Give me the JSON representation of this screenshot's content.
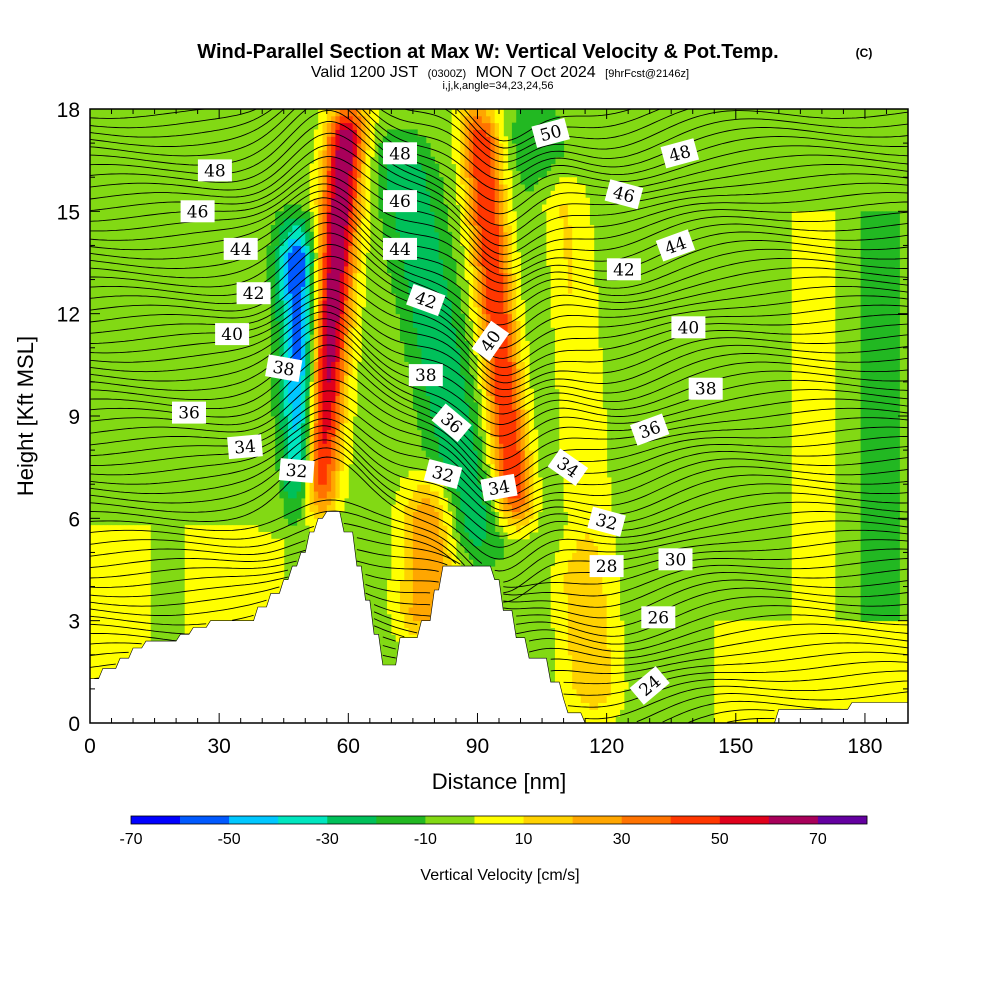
{
  "header": {
    "title": "Wind-Parallel Section at Max W: Vertical Velocity & Pot.Temp.",
    "copyright": "(C)",
    "valid_prefix": "Valid 1200 JST",
    "valid_utc": "(0300Z)",
    "valid_date": "MON 7 Oct 2024",
    "forecast": "[9hrFcst@2146z]",
    "indices": "i,j,k,angle=34,23,24,56"
  },
  "colors": {
    "velocity_palette": [
      "#0000ff",
      "#0059ff",
      "#00c7ff",
      "#00e6bf",
      "#00c05a",
      "#22b822",
      "#82d914",
      "#ffff00",
      "#ffd200",
      "#ffa600",
      "#ff7300",
      "#ff3700",
      "#e0001c",
      "#a8005a",
      "#6400a0"
    ],
    "terrain": "#ffffff",
    "contours": "#000000"
  },
  "chart_data": {
    "type": "heatmap",
    "title": "Wind-Parallel Section at Max W: Vertical Velocity & Pot.Temp.",
    "xlabel": "Distance [nm]",
    "ylabel": "Height [Kft MSL]",
    "xlim": [
      0,
      190
    ],
    "ylim": [
      0,
      18
    ],
    "x_ticks": [
      0,
      30,
      60,
      90,
      120,
      150,
      180
    ],
    "y_ticks": [
      0,
      3,
      6,
      9,
      12,
      15,
      18
    ],
    "colorbar": {
      "label": "Vertical Velocity [cm/s]",
      "bounds": [
        -70,
        80
      ],
      "step": 10,
      "tick_values": [
        -70,
        -50,
        -30,
        -10,
        10,
        30,
        50,
        70
      ]
    },
    "terrain_profile": [
      [
        0,
        1.3
      ],
      [
        2,
        1.3
      ],
      [
        3,
        1.6
      ],
      [
        6,
        1.6
      ],
      [
        7,
        1.9
      ],
      [
        9,
        1.9
      ],
      [
        10,
        2.2
      ],
      [
        12,
        2.2
      ],
      [
        13,
        2.4
      ],
      [
        20,
        2.4
      ],
      [
        21,
        2.6
      ],
      [
        23,
        2.6
      ],
      [
        24,
        2.8
      ],
      [
        27,
        2.8
      ],
      [
        28,
        3.0
      ],
      [
        38,
        3.0
      ],
      [
        39,
        3.4
      ],
      [
        41,
        3.4
      ],
      [
        42,
        3.8
      ],
      [
        44,
        3.8
      ],
      [
        45,
        4.2
      ],
      [
        46,
        4.2
      ],
      [
        47,
        4.6
      ],
      [
        48,
        4.6
      ],
      [
        49,
        5.0
      ],
      [
        50,
        5.0
      ],
      [
        51,
        5.6
      ],
      [
        52,
        5.6
      ],
      [
        53,
        6.0
      ],
      [
        54,
        6.0
      ],
      [
        55,
        6.2
      ],
      [
        58,
        6.2
      ],
      [
        59,
        5.6
      ],
      [
        61,
        5.6
      ],
      [
        62,
        4.6
      ],
      [
        63,
        4.6
      ],
      [
        64,
        3.6
      ],
      [
        65,
        3.6
      ],
      [
        66,
        2.6
      ],
      [
        67,
        2.6
      ],
      [
        68,
        1.7
      ],
      [
        71,
        1.7
      ],
      [
        72,
        2.5
      ],
      [
        76,
        2.5
      ],
      [
        77,
        3.0
      ],
      [
        79,
        3.0
      ],
      [
        80,
        3.9
      ],
      [
        81,
        3.9
      ],
      [
        82,
        4.6
      ],
      [
        93,
        4.6
      ],
      [
        94,
        4.2
      ],
      [
        95,
        4.2
      ],
      [
        96,
        3.3
      ],
      [
        98,
        3.3
      ],
      [
        99,
        2.5
      ],
      [
        101,
        2.5
      ],
      [
        102,
        1.9
      ],
      [
        106,
        1.9
      ],
      [
        107,
        1.2
      ],
      [
        109,
        1.2
      ],
      [
        110,
        0.7
      ],
      [
        111,
        0.3
      ],
      [
        114,
        0.3
      ],
      [
        115,
        0.0
      ],
      [
        159,
        0.0
      ],
      [
        160,
        0.4
      ],
      [
        176,
        0.4
      ],
      [
        177,
        0.6
      ],
      [
        191,
        0.6
      ]
    ],
    "theta_contours": {
      "unit": "K",
      "labeled_levels": [
        24,
        26,
        28,
        30,
        32,
        34,
        36,
        38,
        40,
        42,
        44,
        46,
        48,
        50
      ],
      "labels": [
        {
          "text": "48",
          "x": 29,
          "y": 16.2,
          "angle": 0
        },
        {
          "text": "46",
          "x": 25,
          "y": 15.0,
          "angle": 0
        },
        {
          "text": "44",
          "x": 35,
          "y": 13.9,
          "angle": 0
        },
        {
          "text": "42",
          "x": 38,
          "y": 12.6,
          "angle": 0
        },
        {
          "text": "40",
          "x": 33,
          "y": 11.4,
          "angle": 0
        },
        {
          "text": "38",
          "x": 45,
          "y": 10.4,
          "angle": 10
        },
        {
          "text": "36",
          "x": 23,
          "y": 9.1,
          "angle": 0
        },
        {
          "text": "34",
          "x": 36,
          "y": 8.1,
          "angle": -5
        },
        {
          "text": "32",
          "x": 48,
          "y": 7.4,
          "angle": 5
        },
        {
          "text": "48",
          "x": 72,
          "y": 16.7,
          "angle": 0
        },
        {
          "text": "46",
          "x": 72,
          "y": 15.3,
          "angle": 0
        },
        {
          "text": "44",
          "x": 72,
          "y": 13.9,
          "angle": 0
        },
        {
          "text": "42",
          "x": 78,
          "y": 12.4,
          "angle": 20
        },
        {
          "text": "38",
          "x": 78,
          "y": 10.2,
          "angle": 0
        },
        {
          "text": "40",
          "x": 93,
          "y": 11.2,
          "angle": -55
        },
        {
          "text": "36",
          "x": 84,
          "y": 8.8,
          "angle": 40
        },
        {
          "text": "32",
          "x": 82,
          "y": 7.3,
          "angle": 15
        },
        {
          "text": "34",
          "x": 95,
          "y": 6.9,
          "angle": -10
        },
        {
          "text": "50",
          "x": 107,
          "y": 17.3,
          "angle": -15
        },
        {
          "text": "48",
          "x": 137,
          "y": 16.7,
          "angle": -15
        },
        {
          "text": "46",
          "x": 124,
          "y": 15.5,
          "angle": 15
        },
        {
          "text": "44",
          "x": 136,
          "y": 14.0,
          "angle": -20
        },
        {
          "text": "42",
          "x": 124,
          "y": 13.3,
          "angle": 0
        },
        {
          "text": "40",
          "x": 139,
          "y": 11.6,
          "angle": 0
        },
        {
          "text": "38",
          "x": 143,
          "y": 9.8,
          "angle": 0
        },
        {
          "text": "36",
          "x": 130,
          "y": 8.6,
          "angle": -20
        },
        {
          "text": "34",
          "x": 111,
          "y": 7.5,
          "angle": 35
        },
        {
          "text": "32",
          "x": 120,
          "y": 5.9,
          "angle": 15
        },
        {
          "text": "28",
          "x": 120,
          "y": 4.6,
          "angle": 0
        },
        {
          "text": "30",
          "x": 136,
          "y": 4.8,
          "angle": 0
        },
        {
          "text": "26",
          "x": 132,
          "y": 3.1,
          "angle": 0
        },
        {
          "text": "24",
          "x": 130,
          "y": 1.1,
          "angle": -40
        }
      ]
    },
    "vertical_velocity_features": [
      {
        "kind": "updraft",
        "x_bottom": 52,
        "x_top": 60,
        "y_range": [
          6.0,
          18.0
        ],
        "peak_cm_s": 70
      },
      {
        "kind": "downdraft",
        "x_bottom": 50,
        "x_top": 48,
        "y_range": [
          6.0,
          14.5
        ],
        "peak_cm_s": -60
      },
      {
        "kind": "updraft",
        "x_bottom": 99,
        "x_top": 90,
        "y_range": [
          6.0,
          18.0
        ],
        "peak_cm_s": 50
      },
      {
        "kind": "downdraft",
        "x_bottom": 90,
        "x_top": 72,
        "y_range": [
          5.0,
          17.0
        ],
        "peak_cm_s": -30
      },
      {
        "kind": "updraft",
        "x_bottom": 78,
        "x_top": 79,
        "y_range": [
          2.5,
          7.0
        ],
        "peak_cm_s": 30
      },
      {
        "kind": "downdraft",
        "x_bottom": 112,
        "x_top": 103,
        "y_range": [
          5.0,
          18.0
        ],
        "peak_cm_s": -20
      },
      {
        "kind": "updraft",
        "x_bottom": 117,
        "x_top": 108,
        "y_range": [
          0.3,
          16.0
        ],
        "peak_cm_s": 20
      },
      {
        "kind": "downdraft",
        "x_bottom": 138,
        "x_top": 143,
        "y_range": [
          0.5,
          18.0
        ],
        "peak_cm_s": -10
      }
    ]
  }
}
